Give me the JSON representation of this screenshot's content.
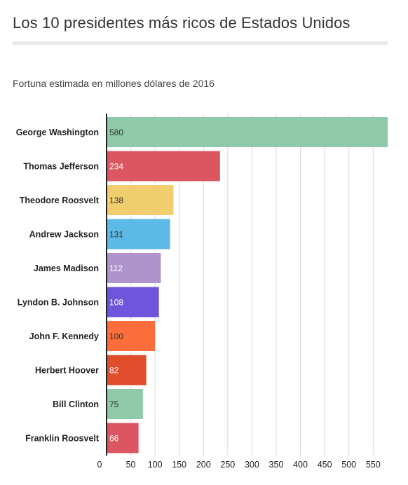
{
  "title": "Los 10 presidentes más ricos de Estados Unidos",
  "subtitle": "Fortuna estimada en millones dólares de 2016",
  "chart_data": {
    "type": "bar",
    "orientation": "horizontal",
    "categories": [
      "George Washington",
      "Thomas Jefferson",
      "Theodore Roosvelt",
      "Andrew Jackson",
      "James Madison",
      "Lyndon B. Johnson",
      "John F. Kennedy",
      "Herbert Hoover",
      "Bill Clinton",
      "Franklin Roosvelt"
    ],
    "values": [
      580,
      234,
      138,
      131,
      112,
      108,
      100,
      82,
      75,
      66
    ],
    "value_labels": [
      "580",
      "234",
      "138",
      "131",
      "112",
      "108",
      "100",
      "82",
      "75",
      "66"
    ],
    "colors": [
      "#8ec9a8",
      "#db5660",
      "#f0ce6e",
      "#5db9e6",
      "#ae94cb",
      "#6f55db",
      "#fb6d3a",
      "#e04d2b",
      "#8ec9a8",
      "#db5660"
    ],
    "label_colors": [
      "#333333",
      "#ffffff",
      "#333333",
      "#333333",
      "#ffffff",
      "#ffffff",
      "#333333",
      "#ffffff",
      "#333333",
      "#ffffff"
    ],
    "xticks": [
      0,
      50,
      100,
      150,
      200,
      250,
      300,
      350,
      400,
      450,
      500,
      550
    ],
    "xlim": [
      0,
      580
    ],
    "grid": "vertical",
    "legend": "none"
  }
}
